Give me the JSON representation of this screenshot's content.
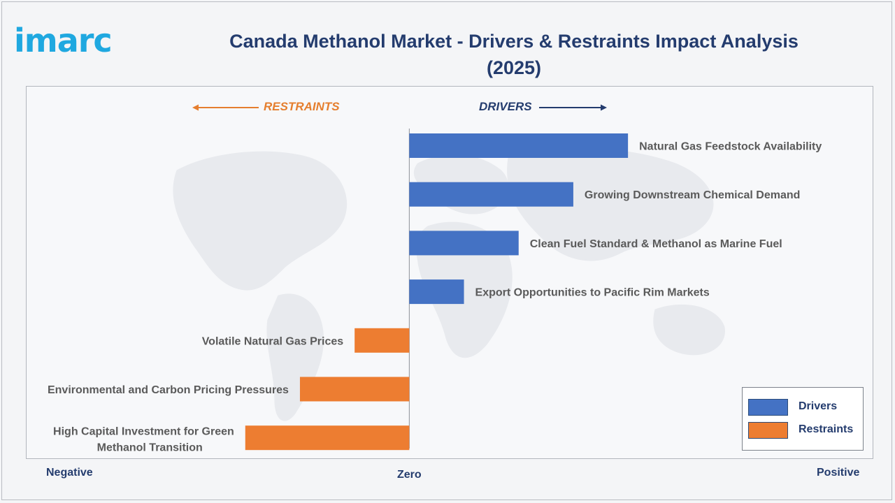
{
  "logo": {
    "text": "imarc"
  },
  "header": {
    "title_line1": "Canada Methanol Market - Drivers & Restraints Impact Analysis",
    "title_line2": "(2025)"
  },
  "direction_labels": {
    "restraints": "RESTRAINTS",
    "drivers": "DRIVERS"
  },
  "axis_labels": {
    "negative": "Negative",
    "zero": "Zero",
    "positive": "Positive"
  },
  "legend": {
    "items": [
      {
        "label": "Drivers",
        "color": "#4472c4"
      },
      {
        "label": "Restraints",
        "color": "#ed7d31"
      }
    ]
  },
  "chart_data": {
    "type": "bar",
    "orientation": "horizontal",
    "title": "Canada Methanol Market - Drivers & Restraints Impact Analysis (2025)",
    "categories": [
      "Natural Gas Feedstock Availability",
      "Growing Downstream Chemical Demand",
      "Clean Fuel Standard & Methanol as Marine Fuel",
      "Export Opportunities to Pacific Rim Markets",
      "Volatile Natural Gas Prices",
      "Environmental and Carbon Pricing Pressures",
      "High Capital Investment for Green Methanol Transition"
    ],
    "series": [
      {
        "name": "Drivers",
        "color": "#4472c4",
        "values": [
          4,
          3,
          2,
          1,
          0,
          0,
          0
        ]
      },
      {
        "name": "Restraints",
        "color": "#ed7d31",
        "values": [
          0,
          0,
          0,
          0,
          -1,
          -2,
          -3
        ]
      }
    ],
    "xlim": [
      -7,
      8.5
    ],
    "x_axis_labels": [
      "Negative",
      "Zero",
      "Positive"
    ],
    "legend_position": "bottom-right",
    "grid": false
  }
}
